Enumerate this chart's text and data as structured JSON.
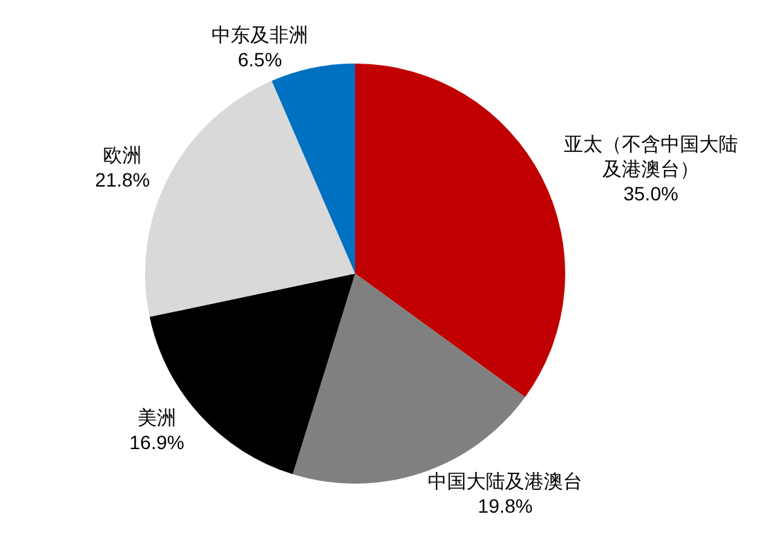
{
  "chart_data": {
    "type": "pie",
    "categories": [
      "亚太（不含中国大陆及港澳台）",
      "中国大陆及港澳台",
      "美洲",
      "欧洲",
      "中东及非洲"
    ],
    "values": [
      35.0,
      19.8,
      16.9,
      21.8,
      6.5
    ],
    "colors": [
      "#c00000",
      "#808080",
      "#000000",
      "#d9d9d9",
      "#0070c0"
    ],
    "value_labels": [
      "35.0%",
      "19.8%",
      "16.9%",
      "21.8%",
      "6.5%"
    ]
  }
}
